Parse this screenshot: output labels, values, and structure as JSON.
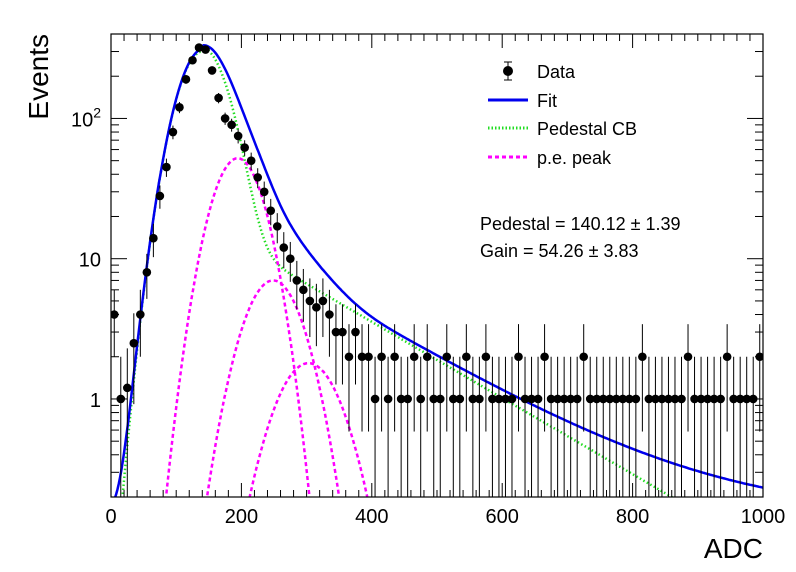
{
  "chart_data": {
    "type": "scatter",
    "title": "",
    "xlabel": "ADC",
    "ylabel": "Events",
    "xlim": [
      0,
      1000
    ],
    "ylim": [
      0.2,
      400
    ],
    "log_y": true,
    "grid": false,
    "legend_position": "top-right",
    "x_ticks": [
      "0",
      "200",
      "400",
      "600",
      "800",
      "1000"
    ],
    "y_ticks": [
      "1",
      "10",
      "10^2"
    ],
    "legend": [
      {
        "label": "Data",
        "style": "marker",
        "color": "#000000"
      },
      {
        "label": "Fit",
        "style": "solid",
        "color": "#0000ee"
      },
      {
        "label": "Pedestal CB",
        "style": "dotted",
        "color": "#22dd22"
      },
      {
        "label": "p.e. peak",
        "style": "dashed",
        "color": "#ff00ff"
      }
    ],
    "annotations": {
      "pedestal": "Pedestal = 140.12",
      "pedestal_err": "1.39",
      "gain": "Gain = 54.26",
      "gain_err": "3.83"
    },
    "fit_params": {
      "pedestal_mean": 140.12,
      "gain": 54.26,
      "fit_peak": 300,
      "pe_peak_heights": [
        52,
        7,
        1.8
      ],
      "pe_peak_positions": [
        194.4,
        248.6,
        302.9
      ]
    },
    "series": [
      {
        "name": "Data",
        "style": "points",
        "x": [
          5,
          15,
          25,
          35,
          45,
          55,
          65,
          75,
          85,
          95,
          105,
          115,
          125,
          135,
          145,
          155,
          165,
          175,
          185,
          195,
          205,
          215,
          225,
          235,
          245,
          255,
          265,
          275,
          285,
          295,
          305,
          315,
          325,
          335,
          345,
          355,
          365,
          375,
          385,
          395,
          405,
          415,
          425,
          435,
          445,
          455,
          465,
          475,
          485,
          495,
          505,
          515,
          525,
          535,
          545,
          555,
          565,
          575,
          585,
          595,
          605,
          615,
          625,
          635,
          645,
          655,
          665,
          675,
          685,
          695,
          705,
          715,
          725,
          735,
          745,
          755,
          765,
          775,
          785,
          795,
          805,
          815,
          825,
          835,
          845,
          855,
          865,
          875,
          885,
          895,
          905,
          915,
          925,
          935,
          945,
          955,
          965,
          975,
          985,
          995
        ],
        "y": [
          4,
          1,
          1.2,
          2.5,
          4,
          8,
          14,
          28,
          45,
          80,
          120,
          190,
          260,
          320,
          310,
          220,
          140,
          100,
          90,
          75,
          62,
          50,
          38,
          30,
          22,
          17,
          12,
          10,
          7,
          6,
          5,
          4.5,
          5,
          4,
          3,
          3,
          2,
          3,
          2,
          2,
          1,
          2,
          1,
          2,
          1,
          1,
          2,
          1,
          2,
          1,
          1,
          2,
          1,
          1,
          2,
          1,
          1,
          2,
          1,
          1,
          1,
          1,
          2,
          1,
          1,
          1,
          2,
          1,
          1,
          1,
          1,
          1,
          2,
          1,
          1,
          1,
          1,
          1,
          1,
          1,
          1,
          2,
          1,
          1,
          1,
          1,
          1,
          1,
          2,
          1,
          1,
          1,
          1,
          1,
          2,
          1,
          1,
          1,
          1,
          2
        ]
      },
      {
        "name": "Fit",
        "style": "solid",
        "color": "#0000ee"
      },
      {
        "name": "Pedestal CB",
        "style": "dotted",
        "color": "#22dd22"
      },
      {
        "name": "p.e. peak",
        "style": "dashed",
        "color": "#ff00ff"
      }
    ]
  }
}
